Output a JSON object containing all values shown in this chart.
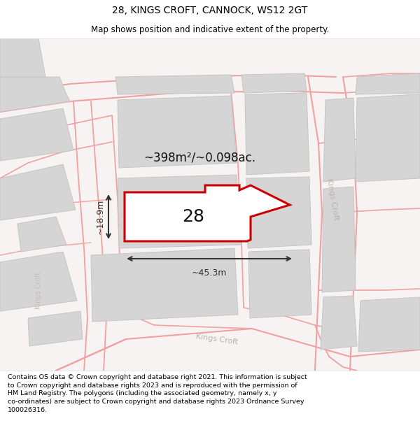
{
  "title_line1": "28, KINGS CROFT, CANNOCK, WS12 2GT",
  "title_line2": "Map shows position and indicative extent of the property.",
  "footer_text": "Contains OS data © Crown copyright and database right 2021. This information is subject to Crown copyright and database rights 2023 and is reproduced with the permission of HM Land Registry. The polygons (including the associated geometry, namely x, y co-ordinates) are subject to Crown copyright and database rights 2023 Ordnance Survey 100026316.",
  "area_label": "~398m²/~0.098ac.",
  "width_label": "~45.3m",
  "height_label": "~18.9m",
  "plot_number": "28",
  "bg_color": "#f8f3f3",
  "plot_fill": "#ffffff",
  "plot_edge": "#dd0000",
  "dim_color": "#333333",
  "road_label_color": "#c0b0b0",
  "title_color": "#000000",
  "footer_color": "#000000",
  "block_color": "#d8d8d8",
  "block_outline": "#c8c8c8",
  "road_line_color": "#f0a0a0",
  "road_bg_color": "#f5eeee"
}
